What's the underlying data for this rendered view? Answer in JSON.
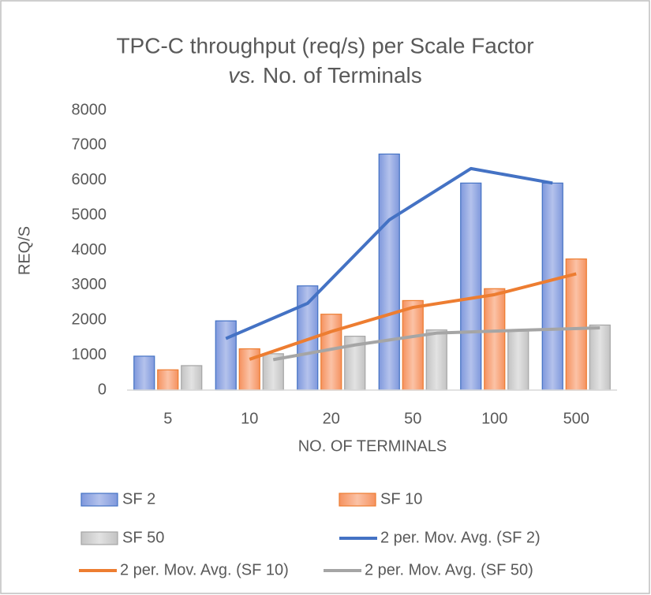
{
  "chart_data": {
    "type": "bar",
    "title": "TPC-C throughput (req/s) per Scale Factor",
    "subtitle_italic": "vs.",
    "subtitle": "No. of Terminals",
    "x_label": "NO. OF TERMINALS",
    "y_label": "REQ/S",
    "categories": [
      "5",
      "10",
      "20",
      "50",
      "100",
      "500"
    ],
    "series": [
      {
        "name": "SF 2",
        "color": "#4472c4",
        "values": [
          970,
          1980,
          2980,
          6750,
          5920,
          5920
        ]
      },
      {
        "name": "SF 10",
        "color": "#ed7d31",
        "values": [
          580,
          1180,
          2170,
          2560,
          2900,
          3750
        ]
      },
      {
        "name": "SF 50",
        "color": "#a5a5a5",
        "values": [
          700,
          1040,
          1540,
          1720,
          1700,
          1860
        ]
      },
      {
        "name": "2 per. Mov. Avg. (SF 2)",
        "type": "line",
        "of": 0,
        "color": "#4472c4",
        "values": [
          null,
          1475,
          2480,
          4865,
          6335,
          5920
        ]
      },
      {
        "name": "2 per. Mov. Avg. (SF 10)",
        "type": "line",
        "of": 1,
        "color": "#ed7d31",
        "values": [
          null,
          880,
          1675,
          2365,
          2730,
          3325
        ]
      },
      {
        "name": "2 per. Mov. Avg. (SF 50)",
        "type": "line",
        "of": 2,
        "color": "#a5a5a5",
        "values": [
          null,
          870,
          1290,
          1630,
          1710,
          1780
        ]
      }
    ],
    "ylim": [
      0,
      8000
    ],
    "yticks": [
      0,
      1000,
      2000,
      3000,
      4000,
      5000,
      6000,
      7000,
      8000
    ],
    "grid": false,
    "legend": "bottom"
  }
}
